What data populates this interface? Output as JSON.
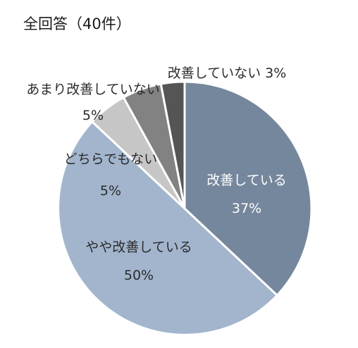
{
  "chart_data": {
    "type": "pie",
    "title": "全回答（40件）",
    "slices": [
      {
        "name": "改善している",
        "value": 37,
        "value_label": "37%",
        "color": "#75879d"
      },
      {
        "name": "やや改善している",
        "value": 50,
        "value_label": "50%",
        "color": "#a2b5cd"
      },
      {
        "name": "どちらでもない",
        "value": 5,
        "value_label": "5%",
        "color": "#c6c6c6"
      },
      {
        "name": "あまり改善していない",
        "value": 5,
        "value_label": "5%",
        "color": "#828282"
      },
      {
        "name": "改善していない",
        "value": 3,
        "value_label": "3%",
        "color": "#555555"
      }
    ],
    "label_text": {
      "s3": "改善していない 3%"
    }
  }
}
